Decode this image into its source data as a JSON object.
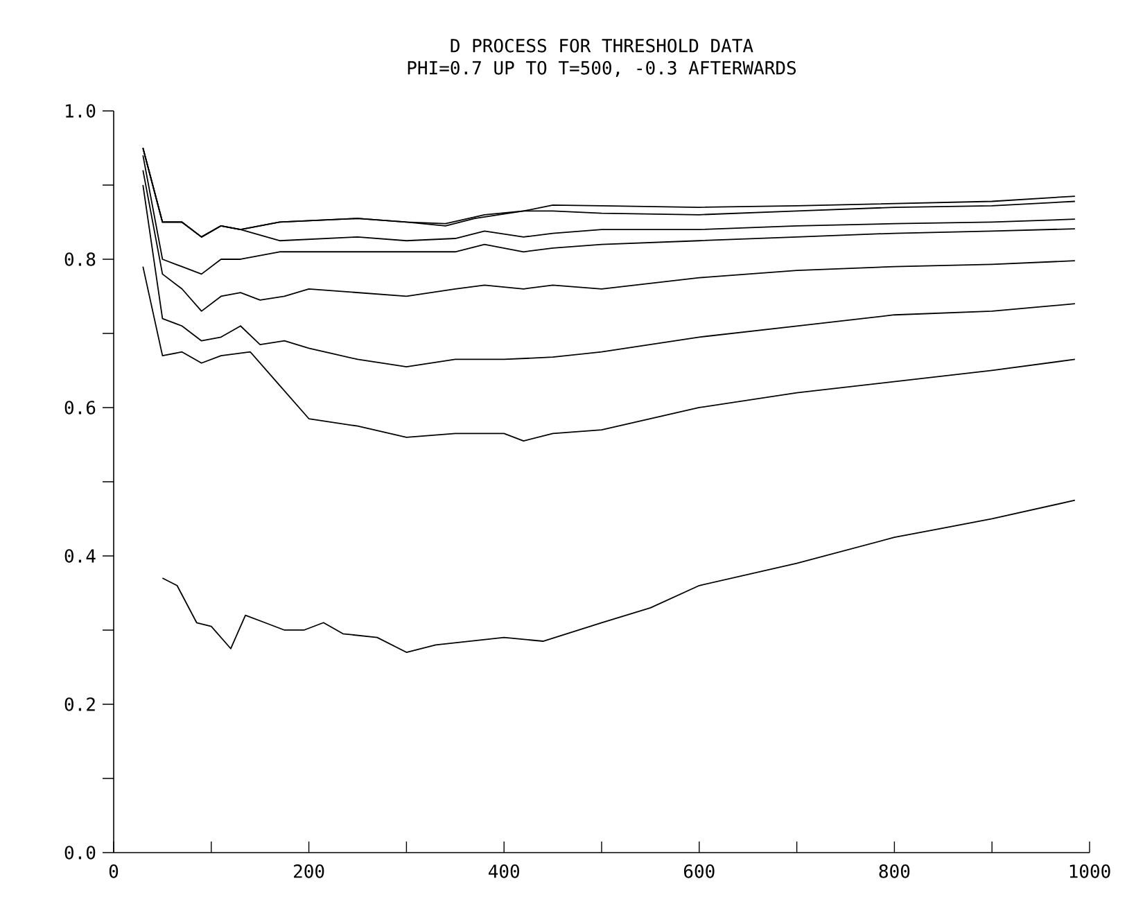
{
  "chart_data": {
    "type": "line",
    "title": "D PROCESS FOR THRESHOLD DATA",
    "subtitle": "PHI=0.7 UP TO T=500, -0.3 AFTERWARDS",
    "xlim": [
      0,
      1000
    ],
    "ylim": [
      0,
      1
    ],
    "xticks": [
      0,
      {
        "value": 100,
        "label": null
      },
      200,
      {
        "value": 300,
        "label": null
      },
      400,
      {
        "value": 500,
        "label": null
      },
      600,
      {
        "value": 700,
        "label": null
      },
      800,
      {
        "value": 900,
        "label": null
      },
      1000
    ],
    "yticks": [
      {
        "value": 0,
        "label": "0.0"
      },
      {
        "value": 0.1,
        "label": null
      },
      {
        "value": 0.2,
        "label": "0.2"
      },
      {
        "value": 0.3,
        "label": null
      },
      {
        "value": 0.4,
        "label": "0.4"
      },
      {
        "value": 0.5,
        "label": null
      },
      {
        "value": 0.6,
        "label": "0.6"
      },
      {
        "value": 0.7,
        "label": null
      },
      {
        "value": 0.8,
        "label": "0.8"
      },
      {
        "value": 0.9,
        "label": null
      },
      {
        "value": 1,
        "label": "1.0"
      }
    ],
    "grid": false,
    "legend": false,
    "series": [
      {
        "color": "#000000",
        "x": [
          30,
          50,
          70,
          90,
          110,
          130,
          170,
          250,
          300,
          340,
          370,
          420,
          450,
          500,
          600,
          700,
          800,
          900,
          985
        ],
        "values": [
          0.95,
          0.85,
          0.85,
          0.83,
          0.845,
          0.84,
          0.85,
          0.855,
          0.85,
          0.845,
          0.855,
          0.865,
          0.873,
          0.872,
          0.87,
          0.872,
          0.875,
          0.878,
          0.885
        ]
      },
      {
        "color": "#000000",
        "x": [
          30,
          50,
          70,
          90,
          110,
          130,
          170,
          250,
          300,
          340,
          380,
          420,
          450,
          500,
          600,
          700,
          800,
          900,
          985
        ],
        "values": [
          0.95,
          0.85,
          0.85,
          0.83,
          0.845,
          0.84,
          0.85,
          0.855,
          0.85,
          0.848,
          0.86,
          0.865,
          0.865,
          0.862,
          0.86,
          0.865,
          0.87,
          0.872,
          0.878
        ]
      },
      {
        "color": "#000000",
        "x": [
          30,
          50,
          70,
          90,
          110,
          130,
          170,
          250,
          300,
          350,
          380,
          420,
          450,
          500,
          600,
          700,
          800,
          900,
          985
        ],
        "values": [
          0.95,
          0.85,
          0.85,
          0.83,
          0.845,
          0.84,
          0.825,
          0.83,
          0.825,
          0.828,
          0.838,
          0.83,
          0.835,
          0.84,
          0.84,
          0.845,
          0.848,
          0.85,
          0.854
        ]
      },
      {
        "color": "#000000",
        "x": [
          30,
          50,
          70,
          90,
          110,
          130,
          170,
          250,
          300,
          350,
          380,
          420,
          450,
          500,
          600,
          700,
          800,
          900,
          985
        ],
        "values": [
          0.94,
          0.8,
          0.79,
          0.78,
          0.8,
          0.8,
          0.81,
          0.81,
          0.81,
          0.81,
          0.82,
          0.81,
          0.815,
          0.82,
          0.825,
          0.83,
          0.835,
          0.838,
          0.841
        ]
      },
      {
        "color": "#000000",
        "x": [
          30,
          50,
          70,
          90,
          110,
          130,
          150,
          175,
          200,
          250,
          300,
          350,
          380,
          420,
          450,
          500,
          600,
          700,
          800,
          900,
          985
        ],
        "values": [
          0.92,
          0.78,
          0.76,
          0.73,
          0.75,
          0.755,
          0.745,
          0.75,
          0.76,
          0.755,
          0.75,
          0.76,
          0.765,
          0.76,
          0.765,
          0.76,
          0.775,
          0.785,
          0.79,
          0.793,
          0.798
        ]
      },
      {
        "color": "#000000",
        "x": [
          30,
          50,
          70,
          90,
          110,
          130,
          150,
          175,
          200,
          250,
          300,
          350,
          400,
          450,
          500,
          600,
          700,
          800,
          900,
          985
        ],
        "values": [
          0.9,
          0.72,
          0.71,
          0.69,
          0.695,
          0.71,
          0.685,
          0.69,
          0.68,
          0.665,
          0.655,
          0.665,
          0.665,
          0.668,
          0.675,
          0.695,
          0.71,
          0.725,
          0.73,
          0.74
        ]
      },
      {
        "color": "#000000",
        "x": [
          30,
          50,
          70,
          90,
          110,
          140,
          170,
          200,
          250,
          300,
          350,
          400,
          420,
          450,
          500,
          600,
          700,
          800,
          900,
          985
        ],
        "values": [
          0.79,
          0.67,
          0.675,
          0.66,
          0.67,
          0.675,
          0.63,
          0.585,
          0.575,
          0.56,
          0.565,
          0.565,
          0.555,
          0.565,
          0.57,
          0.6,
          0.62,
          0.635,
          0.65,
          0.665
        ]
      },
      {
        "color": "#000000",
        "x": [
          50,
          65,
          85,
          100,
          120,
          135,
          155,
          175,
          195,
          215,
          235,
          270,
          300,
          330,
          400,
          440,
          500,
          550,
          600,
          700,
          800,
          900,
          985
        ],
        "values": [
          0.37,
          0.36,
          0.31,
          0.305,
          0.275,
          0.32,
          0.31,
          0.3,
          0.3,
          0.31,
          0.295,
          0.29,
          0.27,
          0.28,
          0.29,
          0.285,
          0.31,
          0.33,
          0.36,
          0.39,
          0.425,
          0.45,
          0.475
        ]
      }
    ]
  }
}
